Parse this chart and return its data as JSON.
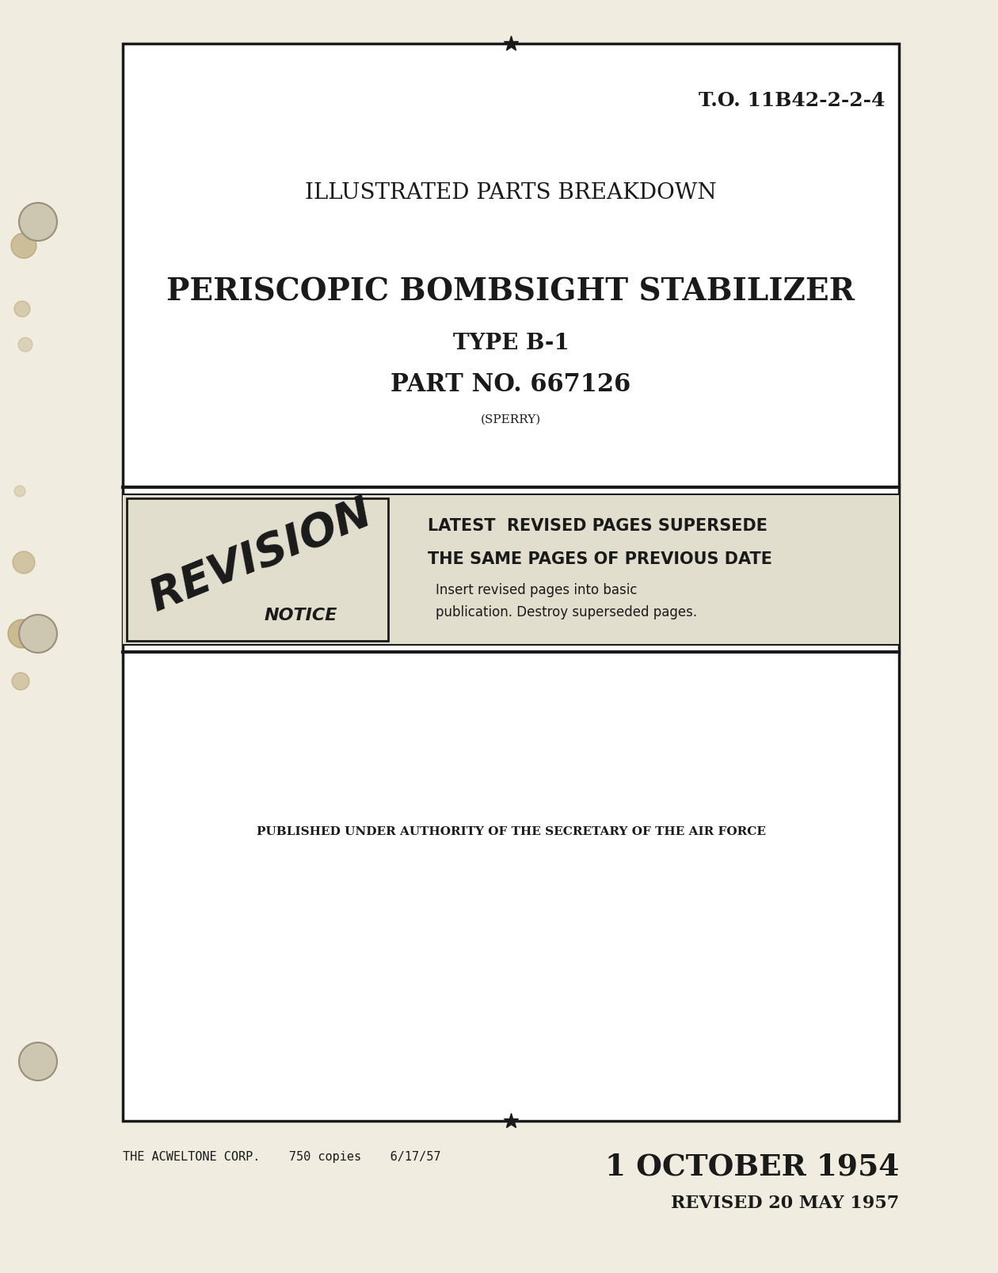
{
  "bg_color": "#ede8d8",
  "page_bg": "#f0ece0",
  "border_color": "#1a1a1a",
  "text_color": "#1a1a1a",
  "to_number": "T.O. 11B42-2-2-4",
  "title_line1": "ILLUSTRATED PARTS BREAKDOWN",
  "main_title": "PERISCOPIC BOMBSIGHT STABILIZER",
  "subtitle1": "TYPE B-1",
  "subtitle2": "PART NO. 667126",
  "subtitle3": "(SPERRY)",
  "revision_text1": "LATEST  REVISED PAGES SUPERSEDE",
  "revision_text2": "THE SAME PAGES OF PREVIOUS DATE",
  "revision_text3": "Insert revised pages into basic",
  "revision_text4": "publication. Destroy superseded pages.",
  "authority_text": "PUBLISHED UNDER AUTHORITY OF THE SECRETARY OF THE AIR FORCE",
  "printer_text": "THE ACWELTONE CORP.    750 copies    6/17/57",
  "date_text": "1 OCTOBER 1954",
  "revised_text": "REVISED 20 MAY 1957",
  "bx1": 155,
  "by1": 55,
  "bx2": 1135,
  "by2": 1415
}
